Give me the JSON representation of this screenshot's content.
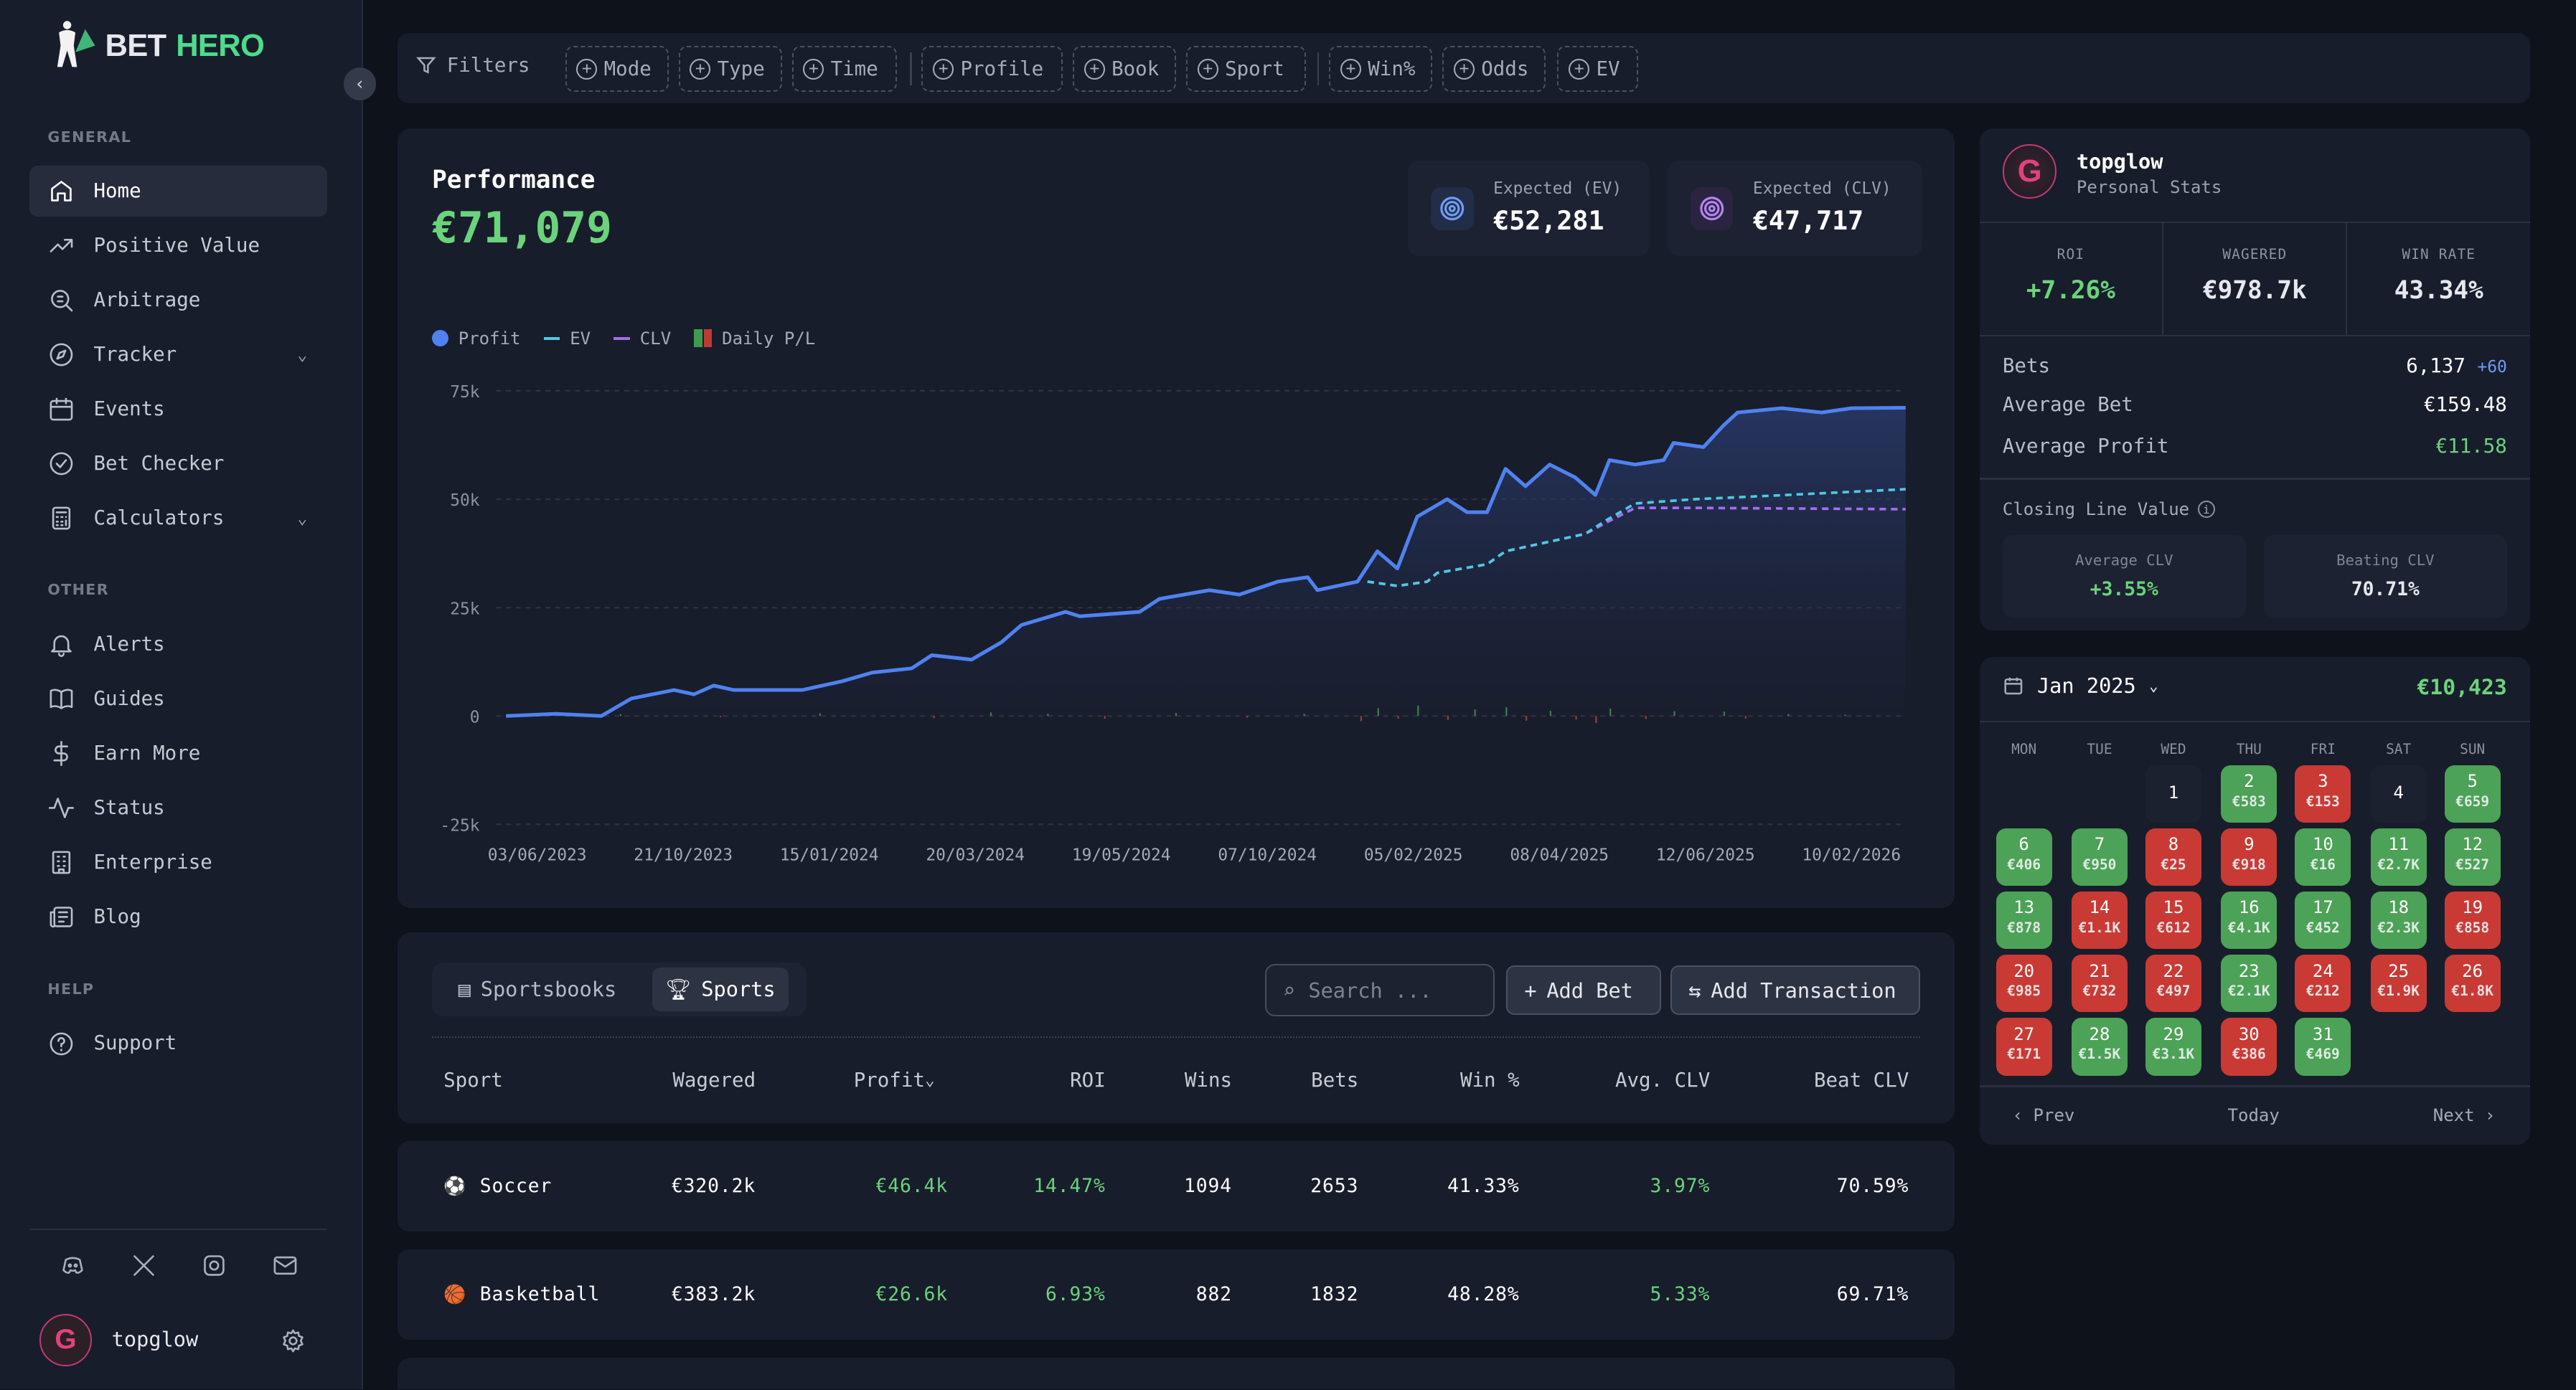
{
  "brand": {
    "name_a": "BET",
    "name_b": "HERO"
  },
  "sidebar": {
    "sections": {
      "general": "GENERAL",
      "other": "OTHER",
      "help": "HELP"
    },
    "general": [
      {
        "label": "Home",
        "icon": "home-icon",
        "active": true
      },
      {
        "label": "Positive Value",
        "icon": "trending-up-icon"
      },
      {
        "label": "Arbitrage",
        "icon": "arbitrage-icon"
      },
      {
        "label": "Tracker",
        "icon": "compass-icon",
        "expand": true
      },
      {
        "label": "Events",
        "icon": "calendar-icon"
      },
      {
        "label": "Bet Checker",
        "icon": "check-circle-icon"
      },
      {
        "label": "Calculators",
        "icon": "calculator-icon",
        "expand": true
      }
    ],
    "other": [
      {
        "label": "Alerts",
        "icon": "bell-icon"
      },
      {
        "label": "Guides",
        "icon": "book-icon"
      },
      {
        "label": "Earn More",
        "icon": "dollar-icon"
      },
      {
        "label": "Status",
        "icon": "activity-icon"
      },
      {
        "label": "Enterprise",
        "icon": "building-icon"
      },
      {
        "label": "Blog",
        "icon": "newspaper-icon"
      }
    ],
    "help": [
      {
        "label": "Support",
        "icon": "help-circle-icon"
      }
    ],
    "social": [
      "discord-icon",
      "x-icon",
      "instagram-icon",
      "mail-icon"
    ],
    "user": {
      "name": "topglow",
      "initial": "G"
    }
  },
  "filters": {
    "label": "Filters",
    "chips": [
      "Mode",
      "Type",
      "Time",
      "Profile",
      "Book",
      "Sport",
      "Win%",
      "Odds",
      "EV"
    ]
  },
  "performance": {
    "title": "Performance",
    "total": "€71,079",
    "ev_label": "Expected (EV)",
    "ev_value": "€52,281",
    "clv_label": "Expected (CLV)",
    "clv_value": "€47,717",
    "legend": [
      "Profit",
      "EV",
      "CLV",
      "Daily P/L"
    ]
  },
  "chart_data": {
    "type": "line",
    "title": "Performance",
    "x_unit": "days since 03/06/2023",
    "x_range": [
      0,
      983
    ],
    "ylim": [
      -25,
      75
    ],
    "y_unit": "k€",
    "yticks": [
      "75k",
      "50k",
      "25k",
      "0",
      "-25k"
    ],
    "ytick_values": [
      75,
      50,
      25,
      0,
      -25
    ],
    "xticks": [
      "03/06/2023",
      "21/10/2023",
      "15/01/2024",
      "20/03/2024",
      "19/05/2024",
      "07/10/2024",
      "05/02/2025",
      "08/04/2025",
      "12/06/2025",
      "10/02/2026"
    ],
    "grid": true,
    "legend_position": "top-left",
    "colors": {
      "profit": "#4f82f0",
      "ev": "#4fc8e0",
      "clv": "#a56ef0",
      "up": "#3f8a4d",
      "down": "#9a3a3a"
    },
    "series": [
      {
        "name": "Profit",
        "points": [
          [
            0,
            0
          ],
          [
            35,
            0.5
          ],
          [
            67,
            0
          ],
          [
            88,
            4
          ],
          [
            118,
            6
          ],
          [
            132,
            5
          ],
          [
            146,
            7
          ],
          [
            160,
            6
          ],
          [
            208,
            6
          ],
          [
            236,
            8
          ],
          [
            257,
            10
          ],
          [
            285,
            11
          ],
          [
            299,
            14
          ],
          [
            327,
            13
          ],
          [
            348,
            17
          ],
          [
            362,
            21
          ],
          [
            393,
            24
          ],
          [
            403,
            23
          ],
          [
            445,
            24
          ],
          [
            459,
            27
          ],
          [
            494,
            29
          ],
          [
            515,
            28
          ],
          [
            542,
            31
          ],
          [
            563,
            32
          ],
          [
            570,
            29
          ],
          [
            598,
            31
          ],
          [
            612,
            38
          ],
          [
            626,
            34
          ],
          [
            640,
            46
          ],
          [
            661,
            50
          ],
          [
            675,
            47
          ],
          [
            689,
            47
          ],
          [
            702,
            57
          ],
          [
            716,
            53
          ],
          [
            733,
            58
          ],
          [
            751,
            55
          ],
          [
            765,
            51
          ],
          [
            775,
            59
          ],
          [
            793,
            58
          ],
          [
            813,
            59
          ],
          [
            820,
            63
          ],
          [
            841,
            62
          ],
          [
            855,
            67
          ],
          [
            865,
            70
          ],
          [
            896,
            71
          ],
          [
            924,
            70
          ],
          [
            945,
            71
          ],
          [
            983,
            71.1
          ]
        ]
      },
      {
        "name": "EV",
        "points": [
          [
            605,
            31
          ],
          [
            626,
            30
          ],
          [
            647,
            31
          ],
          [
            654,
            33
          ],
          [
            689,
            35
          ],
          [
            702,
            38
          ],
          [
            730,
            40
          ],
          [
            758,
            42
          ],
          [
            772,
            45
          ],
          [
            793,
            49
          ],
          [
            835,
            50
          ],
          [
            900,
            51
          ],
          [
            983,
            52.3
          ]
        ]
      },
      {
        "name": "CLV",
        "points": [
          [
            605,
            31
          ],
          [
            626,
            30
          ],
          [
            647,
            31
          ],
          [
            654,
            33
          ],
          [
            689,
            35
          ],
          [
            702,
            38
          ],
          [
            730,
            40
          ],
          [
            758,
            42
          ],
          [
            775,
            45
          ],
          [
            793,
            48
          ],
          [
            835,
            48
          ],
          [
            983,
            47.7
          ]
        ]
      },
      {
        "name": "Daily P/L",
        "points": [
          [
            80,
            0.4
          ],
          [
            150,
            -0.3
          ],
          [
            220,
            0.6
          ],
          [
            300,
            -0.5
          ],
          [
            340,
            0.8
          ],
          [
            380,
            0.5
          ],
          [
            420,
            -0.6
          ],
          [
            470,
            0.7
          ],
          [
            520,
            -0.4
          ],
          [
            560,
            0.5
          ],
          [
            600,
            -1.2
          ],
          [
            612,
            1.8
          ],
          [
            626,
            -0.6
          ],
          [
            640,
            2.4
          ],
          [
            661,
            -0.9
          ],
          [
            680,
            1.5
          ],
          [
            702,
            2.0
          ],
          [
            716,
            -1.1
          ],
          [
            733,
            1.2
          ],
          [
            751,
            -0.8
          ],
          [
            765,
            -1.6
          ],
          [
            775,
            1.7
          ],
          [
            800,
            -0.7
          ],
          [
            820,
            1.1
          ],
          [
            855,
            1.0
          ],
          [
            870,
            -0.6
          ],
          [
            900,
            0.4
          ],
          [
            940,
            0.3
          ]
        ]
      }
    ]
  },
  "stats": {
    "user": "topglow",
    "subtitle": "Personal Stats",
    "initial": "G",
    "roi_label": "ROI",
    "roi": "+7.26%",
    "wagered_label": "WAGERED",
    "wagered": "€978.7k",
    "winrate_label": "WIN RATE",
    "winrate": "43.34%",
    "bets_label": "Bets",
    "bets": "6,137",
    "bets_delta": "+60",
    "avg_bet_label": "Average Bet",
    "avg_bet": "€159.48",
    "avg_profit_label": "Average Profit",
    "avg_profit": "€11.58",
    "clv_title": "Closing Line Value",
    "avg_clv_label": "Average CLV",
    "avg_clv": "+3.55%",
    "beat_clv_label": "Beating CLV",
    "beat_clv": "70.71%"
  },
  "calendar": {
    "month": "Jan 2025",
    "total": "€10,423",
    "dow": [
      "MON",
      "TUE",
      "WED",
      "THU",
      "FRI",
      "SAT",
      "SUN"
    ],
    "start_offset": 2,
    "days": [
      {
        "d": "1",
        "v": "",
        "s": "n"
      },
      {
        "d": "2",
        "v": "€583",
        "s": "g"
      },
      {
        "d": "3",
        "v": "€153",
        "s": "r"
      },
      {
        "d": "4",
        "v": "",
        "s": "n"
      },
      {
        "d": "5",
        "v": "€659",
        "s": "g"
      },
      {
        "d": "6",
        "v": "€406",
        "s": "g"
      },
      {
        "d": "7",
        "v": "€950",
        "s": "g"
      },
      {
        "d": "8",
        "v": "€25",
        "s": "r"
      },
      {
        "d": "9",
        "v": "€918",
        "s": "r"
      },
      {
        "d": "10",
        "v": "€16",
        "s": "g"
      },
      {
        "d": "11",
        "v": "€2.7K",
        "s": "g"
      },
      {
        "d": "12",
        "v": "€527",
        "s": "g"
      },
      {
        "d": "13",
        "v": "€878",
        "s": "g"
      },
      {
        "d": "14",
        "v": "€1.1K",
        "s": "r"
      },
      {
        "d": "15",
        "v": "€612",
        "s": "r"
      },
      {
        "d": "16",
        "v": "€4.1K",
        "s": "g"
      },
      {
        "d": "17",
        "v": "€452",
        "s": "g"
      },
      {
        "d": "18",
        "v": "€2.3K",
        "s": "g"
      },
      {
        "d": "19",
        "v": "€858",
        "s": "r"
      },
      {
        "d": "20",
        "v": "€985",
        "s": "r"
      },
      {
        "d": "21",
        "v": "€732",
        "s": "r"
      },
      {
        "d": "22",
        "v": "€497",
        "s": "r"
      },
      {
        "d": "23",
        "v": "€2.1K",
        "s": "g"
      },
      {
        "d": "24",
        "v": "€212",
        "s": "r"
      },
      {
        "d": "25",
        "v": "€1.9K",
        "s": "r"
      },
      {
        "d": "26",
        "v": "€1.8K",
        "s": "r"
      },
      {
        "d": "27",
        "v": "€171",
        "s": "r"
      },
      {
        "d": "28",
        "v": "€1.5K",
        "s": "g"
      },
      {
        "d": "29",
        "v": "€3.1K",
        "s": "g"
      },
      {
        "d": "30",
        "v": "€386",
        "s": "r"
      },
      {
        "d": "31",
        "v": "€469",
        "s": "g"
      }
    ],
    "prev": "Prev",
    "today": "Today",
    "next": "Next"
  },
  "table": {
    "tabs": [
      "Sportsbooks",
      "Sports"
    ],
    "search_placeholder": "Search ...",
    "add_bet": "Add Bet",
    "add_transaction": "Add Transaction",
    "columns": [
      "Sport",
      "Wagered",
      "Profit",
      "ROI",
      "Wins",
      "Bets",
      "Win %",
      "Avg. CLV",
      "Beat CLV"
    ],
    "rows": [
      {
        "icon": "⚽",
        "sport": "Soccer",
        "wagered": "€320.2k",
        "profit": "€46.4k",
        "roi": "14.47%",
        "wins": "1094",
        "bets": "2653",
        "winpct": "41.33%",
        "avgclv": "3.97%",
        "beatclv": "70.59%"
      },
      {
        "icon": "🏀",
        "sport": "Basketball",
        "wagered": "€383.2k",
        "profit": "€26.6k",
        "roi": "6.93%",
        "wins": "882",
        "bets": "1832",
        "winpct": "48.28%",
        "avgclv": "5.33%",
        "beatclv": "69.71%"
      }
    ]
  }
}
